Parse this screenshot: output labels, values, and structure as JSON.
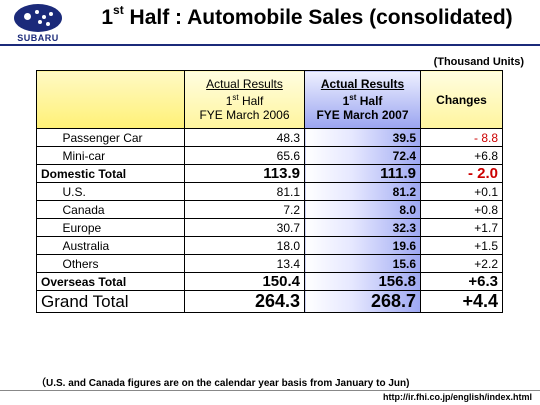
{
  "header": {
    "logo_text": "SUBARU",
    "title_pre": "1",
    "title_sup": "st",
    "title_post": " Half : Automobile Sales (consolidated)"
  },
  "units": "(Thousand Units)",
  "table": {
    "col2006": {
      "line1": "Actual Results",
      "line2_pre": "1",
      "line2_sup": "st",
      "line2_post": " Half",
      "line3": "FYE March 2006"
    },
    "col2007": {
      "line1": "Actual Results",
      "line2_pre": "1",
      "line2_sup": "st",
      "line2_post": " Half",
      "line3": "FYE March 2007"
    },
    "changes": "Changes",
    "domestic_rows": [
      {
        "label": "Passenger Car",
        "v2006": "48.3",
        "v2007": "39.5",
        "change": "- 8.8"
      },
      {
        "label": "Mini-car",
        "v2006": "65.6",
        "v2007": "72.4",
        "change": "+6.8"
      }
    ],
    "domestic_total": {
      "label": "Domestic Total",
      "v2006": "113.9",
      "v2007": "111.9",
      "change": "- 2.0"
    },
    "overseas_rows": [
      {
        "label": "U.S.",
        "v2006": "81.1",
        "v2007": "81.2",
        "change": "+0.1"
      },
      {
        "label": "Canada",
        "v2006": "7.2",
        "v2007": "8.0",
        "change": "+0.8"
      },
      {
        "label": "Europe",
        "v2006": "30.7",
        "v2007": "32.3",
        "change": "+1.7"
      },
      {
        "label": "Australia",
        "v2006": "18.0",
        "v2007": "19.6",
        "change": "+1.5"
      },
      {
        "label": "Others",
        "v2006": "13.4",
        "v2007": "15.6",
        "change": "+2.2"
      }
    ],
    "overseas_total": {
      "label": "Overseas Total",
      "v2006": "150.4",
      "v2007": "156.8",
      "change": "+6.3"
    },
    "grand_total": {
      "label": "Grand Total",
      "v2006": "264.3",
      "v2007": "268.7",
      "change": "+4.4"
    }
  },
  "note": "（U.S. and Canada figures are on the calendar year basis from January to Jun)",
  "footer_url": "http://ir.fhi.co.jp/english/index.html",
  "colors": {
    "brand": "#1b2a7a",
    "negative": "#cc0000",
    "highlight_blue": "#9ea8f2",
    "header_yellow": "#fff176"
  }
}
